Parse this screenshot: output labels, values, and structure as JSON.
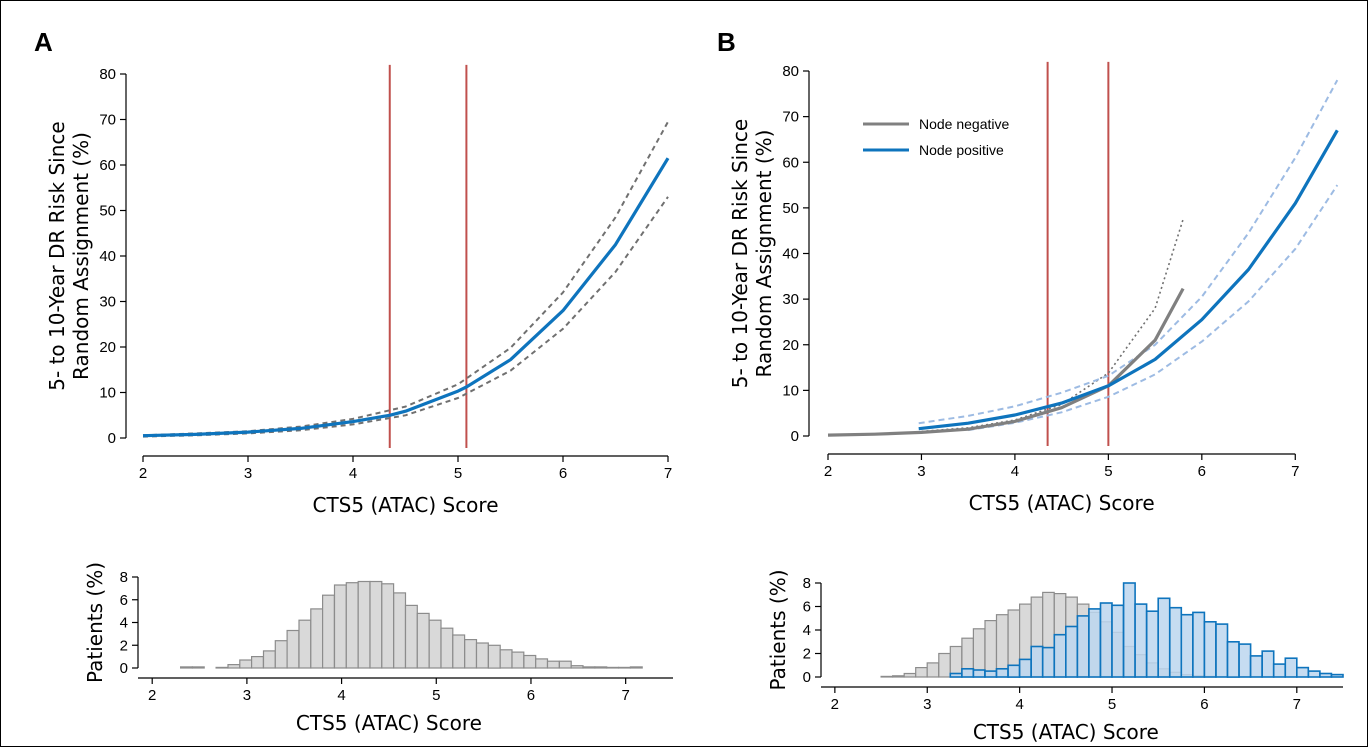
{
  "panels": {
    "a": {
      "letter": "A"
    },
    "b": {
      "letter": "B"
    }
  },
  "colors": {
    "cutoff": "#c0504d",
    "node_positive": "#0e74bd",
    "node_positive_ci": "#9dbbe3",
    "node_negative": "#808080",
    "node_negative_ci": "#707070",
    "hist_gray_fill": "#d9d9d9",
    "hist_gray_stroke": "#8c8c8c",
    "hist_blue_fill": "#bcd6ee",
    "hist_blue_stroke": "#0e74bd"
  },
  "chart_data": [
    {
      "id": "A-risk",
      "type": "line",
      "xlabel": "CTS5 (ATAC) Score",
      "ylabel": [
        "5- to 10-Year DR Risk Since",
        "Random Assignment (%)"
      ],
      "xlim": [
        2,
        7
      ],
      "ylim": [
        0,
        80
      ],
      "xticks": [
        2,
        3,
        4,
        5,
        6,
        7
      ],
      "yticks": [
        0,
        10,
        20,
        30,
        40,
        50,
        60,
        70,
        80
      ],
      "vlines": [
        4.35,
        5.08
      ],
      "series": [
        {
          "role": "estimate",
          "x": [
            2.0,
            2.5,
            3.0,
            3.5,
            4.0,
            4.35,
            4.5,
            5.0,
            5.08,
            5.5,
            6.0,
            6.5,
            7.0
          ],
          "y": [
            0.5,
            0.8,
            1.3,
            2.1,
            3.6,
            5.0,
            5.9,
            10.3,
            11.2,
            17.2,
            28.0,
            42.5,
            61.5
          ]
        },
        {
          "role": "ci-upper",
          "x": [
            2.0,
            2.5,
            3.0,
            3.5,
            4.0,
            4.5,
            5.0,
            5.5,
            6.0,
            6.5,
            7.0
          ],
          "y": [
            0.6,
            1.0,
            1.5,
            2.5,
            4.2,
            6.9,
            11.8,
            19.8,
            32.0,
            48.5,
            69.5
          ]
        },
        {
          "role": "ci-lower",
          "x": [
            2.0,
            2.5,
            3.0,
            3.5,
            4.0,
            4.5,
            5.0,
            5.5,
            6.0,
            6.5,
            7.0
          ],
          "y": [
            0.3,
            0.6,
            1.0,
            1.7,
            3.0,
            5.0,
            8.8,
            14.8,
            24.0,
            36.5,
            53.0
          ]
        }
      ]
    },
    {
      "id": "B-risk",
      "type": "line",
      "xlabel": "CTS5 (ATAC) Score",
      "ylabel": [
        "5- to 10-Year DR Risk Since",
        "Random Assignment (%)"
      ],
      "xlim": [
        2,
        7.5
      ],
      "ylim": [
        0,
        80
      ],
      "xticks": [
        2,
        3,
        4,
        5,
        6,
        7
      ],
      "yticks": [
        0,
        10,
        20,
        30,
        40,
        50,
        60,
        70,
        80
      ],
      "vlines": [
        4.35,
        5.0
      ],
      "legend": [
        "Node negative",
        "Node positive"
      ],
      "series": [
        {
          "name": "Node negative",
          "role": "estimate",
          "x": [
            2.0,
            2.5,
            3.0,
            3.5,
            4.0,
            4.5,
            5.0,
            5.5,
            5.8
          ],
          "y": [
            0.2,
            0.4,
            0.8,
            1.5,
            3.2,
            6.2,
            11.0,
            21.0,
            32.3
          ]
        },
        {
          "name": "Node negative",
          "role": "ci-upper",
          "x": [
            3.0,
            3.5,
            4.0,
            4.5,
            5.0,
            5.5,
            5.8
          ],
          "y": [
            1.0,
            1.8,
            3.5,
            6.9,
            13.8,
            28.0,
            47.5
          ]
        },
        {
          "name": "Node positive",
          "role": "estimate",
          "x": [
            2.97,
            3.5,
            4.0,
            4.5,
            5.0,
            5.5,
            6.0,
            6.5,
            7.0,
            7.45
          ],
          "y": [
            1.6,
            2.8,
            4.6,
            7.2,
            11.0,
            16.8,
            25.5,
            36.5,
            51.0,
            67.0
          ]
        },
        {
          "name": "Node positive",
          "role": "ci-upper",
          "x": [
            2.97,
            3.5,
            4.0,
            4.5,
            5.0,
            5.5,
            6.0,
            6.5,
            7.0,
            7.45
          ],
          "y": [
            2.8,
            4.4,
            6.5,
            9.5,
            13.2,
            20.0,
            30.5,
            44.5,
            61.0,
            78.0
          ]
        },
        {
          "name": "Node positive",
          "role": "ci-lower",
          "x": [
            3.5,
            4.0,
            4.5,
            5.0,
            5.5,
            6.0,
            6.5,
            7.0,
            7.45
          ],
          "y": [
            1.3,
            2.9,
            5.2,
            8.6,
            13.5,
            20.7,
            29.5,
            41.0,
            55.0
          ]
        }
      ]
    },
    {
      "id": "A-hist",
      "type": "bar",
      "xlabel": "CTS5 (ATAC) Score",
      "ylabel": "Patients (%)",
      "xlim": [
        1.85,
        7.5
      ],
      "ylim": [
        0,
        8
      ],
      "xticks": [
        2,
        3,
        4,
        5,
        6,
        7
      ],
      "yticks": [
        0,
        2,
        4,
        6,
        8
      ],
      "bin_width": 0.125,
      "series": [
        {
          "bin_start": 2.3,
          "values": [
            0.1,
            0.1,
            0,
            0.05,
            0.3,
            0.7,
            1.0,
            1.5,
            2.4,
            3.3,
            4.2,
            5.2,
            6.4,
            7.3,
            7.5,
            7.6,
            7.6,
            7.4,
            6.6,
            5.5,
            4.8,
            4.2,
            3.5,
            2.9,
            2.5,
            2.2,
            2.0,
            1.6,
            1.4,
            1.1,
            0.8,
            0.6,
            0.6,
            0.2,
            0.1,
            0.1,
            0.05,
            0.05,
            0.1
          ]
        }
      ]
    },
    {
      "id": "B-hist",
      "type": "bar",
      "xlabel": "CTS5 (ATAC) Score",
      "ylabel": "Patients (%)",
      "xlim": [
        1.85,
        7.5
      ],
      "ylim": [
        0,
        8
      ],
      "xticks": [
        2,
        3,
        4,
        5,
        6,
        7
      ],
      "yticks": [
        0,
        2,
        4,
        6,
        8
      ],
      "bin_width": 0.125,
      "series": [
        {
          "name": "Node negative",
          "bin_start": 2.5,
          "values": [
            0.05,
            0.1,
            0.3,
            0.8,
            1.2,
            2.0,
            2.6,
            3.3,
            4.1,
            4.8,
            5.3,
            5.7,
            6.2,
            6.8,
            7.2,
            7.1,
            6.8,
            6.2,
            5.5,
            4.7,
            3.8,
            2.6,
            1.9,
            1.2,
            0.7,
            0.4,
            0.2,
            0.1,
            0.05
          ]
        },
        {
          "name": "Node positive",
          "bin_start": 3.25,
          "values": [
            0.3,
            0.7,
            0.6,
            0.5,
            0.7,
            1.0,
            1.5,
            2.6,
            2.5,
            3.6,
            4.3,
            5.2,
            5.8,
            6.3,
            6.1,
            8.0,
            6.2,
            5.6,
            6.7,
            5.9,
            5.3,
            5.5,
            4.7,
            4.5,
            3.0,
            2.8,
            1.8,
            2.2,
            1.1,
            1.6,
            0.8,
            0.5,
            0.3,
            0.2
          ]
        }
      ]
    }
  ]
}
